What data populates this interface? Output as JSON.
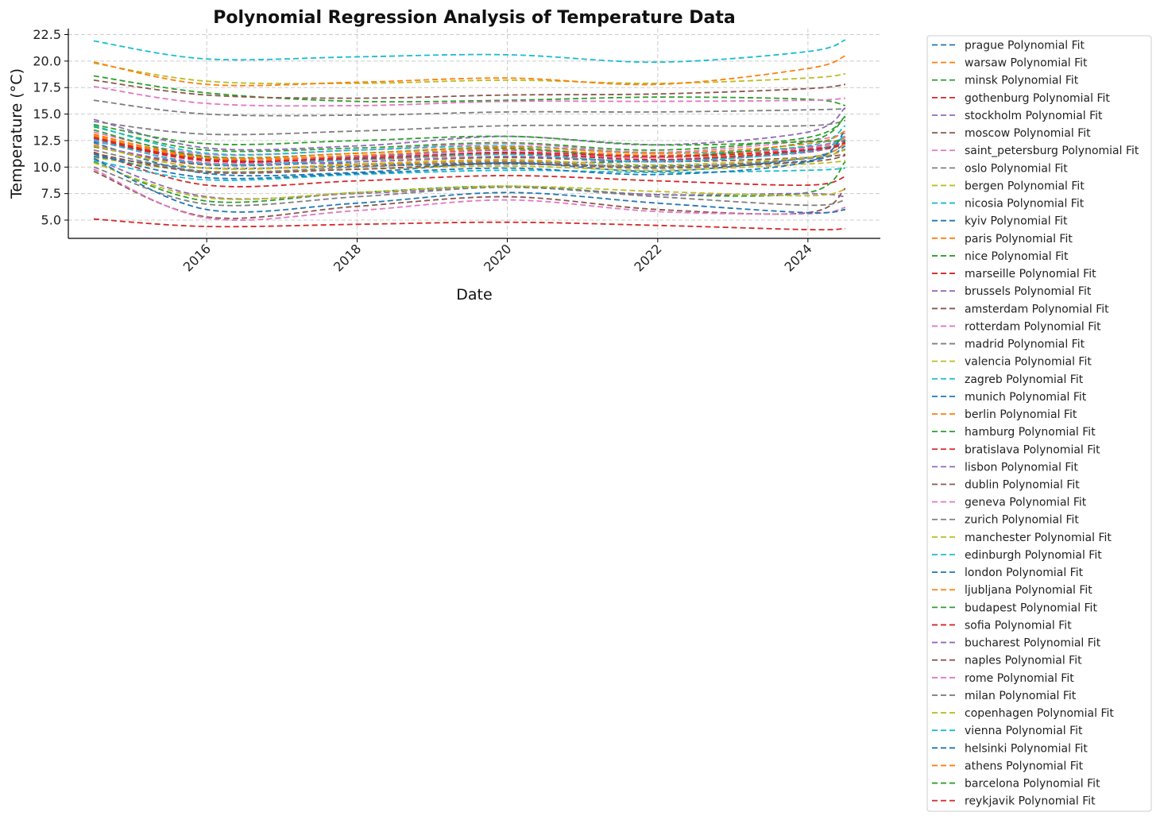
{
  "chart_data": {
    "type": "line",
    "title": "Polynomial Regression Analysis of Temperature Data",
    "xlabel": "Date",
    "ylabel": "Temperature (°C)",
    "xlim": [
      "2014-06-01",
      "2025-01-01"
    ],
    "ylim": [
      3.0,
      23.0
    ],
    "x_ticks": [
      "2016",
      "2018",
      "2020",
      "2022",
      "2024"
    ],
    "y_ticks": [
      "5.0",
      "7.5",
      "10.0",
      "12.5",
      "15.0",
      "17.5",
      "20.0",
      "22.5"
    ],
    "grid": true,
    "line_style": "dashed",
    "legend_position": "outside right",
    "x": [
      "2014-07-01",
      "2016-01-01",
      "2018-01-01",
      "2020-01-01",
      "2022-01-01",
      "2024-01-01",
      "2024-07-01"
    ],
    "series": [
      {
        "name": "prague Polynomial Fit",
        "color": "#1f77b4",
        "values": [
          12.4,
          10.8,
          10.3,
          10.4,
          10.6,
          11.6,
          12.4
        ]
      },
      {
        "name": "warsaw Polynomial Fit",
        "color": "#ff7f0e",
        "values": [
          13.0,
          11.0,
          10.7,
          11.2,
          10.9,
          11.5,
          12.8
        ]
      },
      {
        "name": "minsk Polynomial Fit",
        "color": "#2ca02c",
        "values": [
          18.6,
          17.0,
          16.2,
          16.3,
          16.6,
          16.4,
          15.8
        ]
      },
      {
        "name": "gothenburg Polynomial Fit",
        "color": "#d62728",
        "values": [
          11.4,
          8.3,
          8.7,
          9.2,
          8.7,
          8.3,
          9.1
        ]
      },
      {
        "name": "stockholm Polynomial Fit",
        "color": "#9467bd",
        "values": [
          14.5,
          11.8,
          12.0,
          12.9,
          12.1,
          13.3,
          15.6
        ]
      },
      {
        "name": "moscow Polynomial Fit",
        "color": "#8c564b",
        "values": [
          18.2,
          16.8,
          16.5,
          16.8,
          16.9,
          17.4,
          17.8
        ]
      },
      {
        "name": "saint_petersburg Polynomial Fit",
        "color": "#e377c2",
        "values": [
          17.6,
          16.0,
          15.8,
          16.2,
          16.2,
          16.3,
          16.5
        ]
      },
      {
        "name": "oslo Polynomial Fit",
        "color": "#7f7f7f",
        "values": [
          16.3,
          15.0,
          14.9,
          15.2,
          15.2,
          15.4,
          15.5
        ]
      },
      {
        "name": "bergen Polynomial Fit",
        "color": "#bcbd22",
        "values": [
          19.8,
          18.1,
          17.9,
          18.2,
          17.9,
          18.4,
          18.8
        ]
      },
      {
        "name": "nicosia Polynomial Fit",
        "color": "#17becf",
        "values": [
          21.9,
          20.2,
          20.4,
          20.6,
          19.9,
          20.9,
          22.0
        ]
      },
      {
        "name": "kyiv Polynomial Fit",
        "color": "#1f77b4",
        "values": [
          12.3,
          9.4,
          9.5,
          10.4,
          9.6,
          10.9,
          12.2
        ]
      },
      {
        "name": "paris Polynomial Fit",
        "color": "#ff7f0e",
        "values": [
          19.9,
          17.8,
          18.0,
          18.4,
          17.8,
          19.3,
          20.5
        ]
      },
      {
        "name": "nice Polynomial Fit",
        "color": "#2ca02c",
        "values": [
          13.8,
          11.6,
          11.8,
          12.3,
          11.6,
          12.8,
          14.7
        ]
      },
      {
        "name": "marseille Polynomial Fit",
        "color": "#d62728",
        "values": [
          12.6,
          10.6,
          10.9,
          11.3,
          10.7,
          11.5,
          12.2
        ]
      },
      {
        "name": "brussels Polynomial Fit",
        "color": "#9467bd",
        "values": [
          12.8,
          10.9,
          11.0,
          11.6,
          11.1,
          11.9,
          12.9
        ]
      },
      {
        "name": "amsterdam Polynomial Fit",
        "color": "#8c564b",
        "values": [
          11.9,
          10.2,
          10.5,
          10.9,
          10.5,
          10.9,
          11.2
        ]
      },
      {
        "name": "rotterdam Polynomial Fit",
        "color": "#e377c2",
        "values": [
          13.3,
          11.2,
          11.6,
          12.2,
          11.4,
          12.5,
          13.2
        ]
      },
      {
        "name": "madrid Polynomial Fit",
        "color": "#7f7f7f",
        "values": [
          14.3,
          13.1,
          13.4,
          13.9,
          13.9,
          13.9,
          14.4
        ]
      },
      {
        "name": "valencia Polynomial Fit",
        "color": "#bcbd22",
        "values": [
          10.9,
          9.6,
          9.8,
          10.1,
          9.7,
          10.3,
          10.6
        ]
      },
      {
        "name": "zagreb Polynomial Fit",
        "color": "#17becf",
        "values": [
          13.9,
          11.3,
          11.6,
          12.0,
          11.3,
          12.0,
          13.9
        ]
      },
      {
        "name": "munich Polynomial Fit",
        "color": "#1f77b4",
        "values": [
          11.0,
          9.9,
          10.1,
          10.3,
          10.1,
          10.6,
          12.0
        ]
      },
      {
        "name": "berlin Polynomial Fit",
        "color": "#ff7f0e",
        "values": [
          12.9,
          10.8,
          11.1,
          11.7,
          11.1,
          11.8,
          12.8
        ]
      },
      {
        "name": "hamburg Polynomial Fit",
        "color": "#2ca02c",
        "values": [
          10.5,
          6.8,
          7.6,
          8.2,
          7.4,
          7.6,
          10.5
        ]
      },
      {
        "name": "bratislava Polynomial Fit",
        "color": "#d62728",
        "values": [
          12.7,
          10.6,
          10.7,
          11.3,
          10.9,
          11.7,
          12.3
        ]
      },
      {
        "name": "lisbon Polynomial Fit",
        "color": "#9467bd",
        "values": [
          10.8,
          7.2,
          7.5,
          8.1,
          7.4,
          7.5,
          7.2
        ]
      },
      {
        "name": "dublin Polynomial Fit",
        "color": "#8c564b",
        "values": [
          9.6,
          5.3,
          6.3,
          7.2,
          6.0,
          5.7,
          8.0
        ]
      },
      {
        "name": "geneva Polynomial Fit",
        "color": "#e377c2",
        "values": [
          9.8,
          5.2,
          5.9,
          6.9,
          5.8,
          5.6,
          6.2
        ]
      },
      {
        "name": "zurich Polynomial Fit",
        "color": "#7f7f7f",
        "values": [
          10.0,
          6.5,
          7.2,
          8.1,
          7.2,
          6.4,
          6.9
        ]
      },
      {
        "name": "manchester Polynomial Fit",
        "color": "#bcbd22",
        "values": [
          10.4,
          7.1,
          7.6,
          8.2,
          7.7,
          7.3,
          7.9
        ]
      },
      {
        "name": "edinburgh Polynomial Fit",
        "color": "#17becf",
        "values": [
          10.6,
          8.8,
          9.3,
          9.7,
          9.5,
          9.7,
          9.9
        ]
      },
      {
        "name": "london Polynomial Fit",
        "color": "#1f77b4",
        "values": [
          10.8,
          6.0,
          6.6,
          7.6,
          6.6,
          5.7,
          6.0
        ]
      },
      {
        "name": "ljubljana Polynomial Fit",
        "color": "#ff7f0e",
        "values": [
          12.1,
          9.9,
          10.2,
          10.6,
          10.0,
          10.9,
          12.2
        ]
      },
      {
        "name": "budapest Polynomial Fit",
        "color": "#2ca02c",
        "values": [
          13.5,
          11.0,
          11.3,
          11.8,
          10.9,
          12.4,
          14.8
        ]
      },
      {
        "name": "sofia Polynomial Fit",
        "color": "#d62728",
        "values": [
          5.1,
          4.4,
          4.6,
          4.8,
          4.5,
          4.1,
          4.2
        ]
      },
      {
        "name": "bucharest Polynomial Fit",
        "color": "#9467bd",
        "values": [
          12.0,
          10.3,
          10.5,
          11.0,
          10.6,
          11.4,
          12.6
        ]
      },
      {
        "name": "naples Polynomial Fit",
        "color": "#8c564b",
        "values": [
          11.3,
          9.5,
          9.8,
          10.3,
          9.9,
          10.5,
          11.1
        ]
      },
      {
        "name": "rome Polynomial Fit",
        "color": "#e377c2",
        "values": [
          12.5,
          10.4,
          10.8,
          11.4,
          10.9,
          11.8,
          12.9
        ]
      },
      {
        "name": "milan Polynomial Fit",
        "color": "#7f7f7f",
        "values": [
          11.6,
          9.6,
          10.0,
          10.5,
          10.0,
          10.8,
          11.7
        ]
      },
      {
        "name": "copenhagen Polynomial Fit",
        "color": "#bcbd22",
        "values": [
          12.0,
          9.9,
          10.3,
          10.7,
          10.2,
          10.9,
          11.6
        ]
      },
      {
        "name": "vienna Polynomial Fit",
        "color": "#17becf",
        "values": [
          12.6,
          10.3,
          10.7,
          11.2,
          10.5,
          11.5,
          13.0
        ]
      },
      {
        "name": "helsinki Polynomial Fit",
        "color": "#1f77b4",
        "values": [
          11.2,
          9.0,
          9.4,
          9.9,
          9.3,
          10.5,
          13.5
        ]
      },
      {
        "name": "athens Polynomial Fit",
        "color": "#ff7f0e",
        "values": [
          13.1,
          10.9,
          11.3,
          11.9,
          11.3,
          12.2,
          13.4
        ]
      },
      {
        "name": "barcelona Polynomial Fit",
        "color": "#2ca02c",
        "values": [
          14.0,
          12.2,
          12.5,
          12.9,
          12.1,
          12.4,
          12.5
        ]
      },
      {
        "name": "reykjavik Polynomial Fit",
        "color": "#d62728",
        "values": [
          12.8,
          10.7,
          10.8,
          11.4,
          11.0,
          11.6,
          12.3
        ]
      }
    ]
  }
}
